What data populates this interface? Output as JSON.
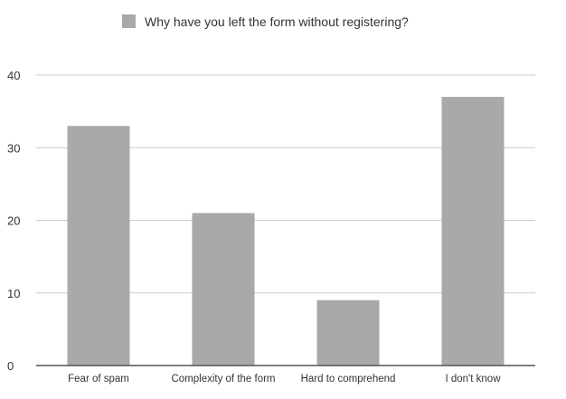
{
  "chart_data": {
    "type": "bar",
    "categories": [
      "Fear of spam",
      "Complexity of the form",
      "Hard to comprehend",
      "I don't know"
    ],
    "series": [
      {
        "name": "Why have you left the form without registering?",
        "values": [
          33,
          21,
          9,
          37
        ]
      }
    ],
    "ylim": [
      0,
      40
    ],
    "yticks": [
      "0",
      "10",
      "20",
      "30",
      "40"
    ],
    "grid": true,
    "legend_position": "top",
    "colors": {
      "bar": "#a9a9a9",
      "grid": "#cccccc",
      "axis": "#555555"
    }
  }
}
